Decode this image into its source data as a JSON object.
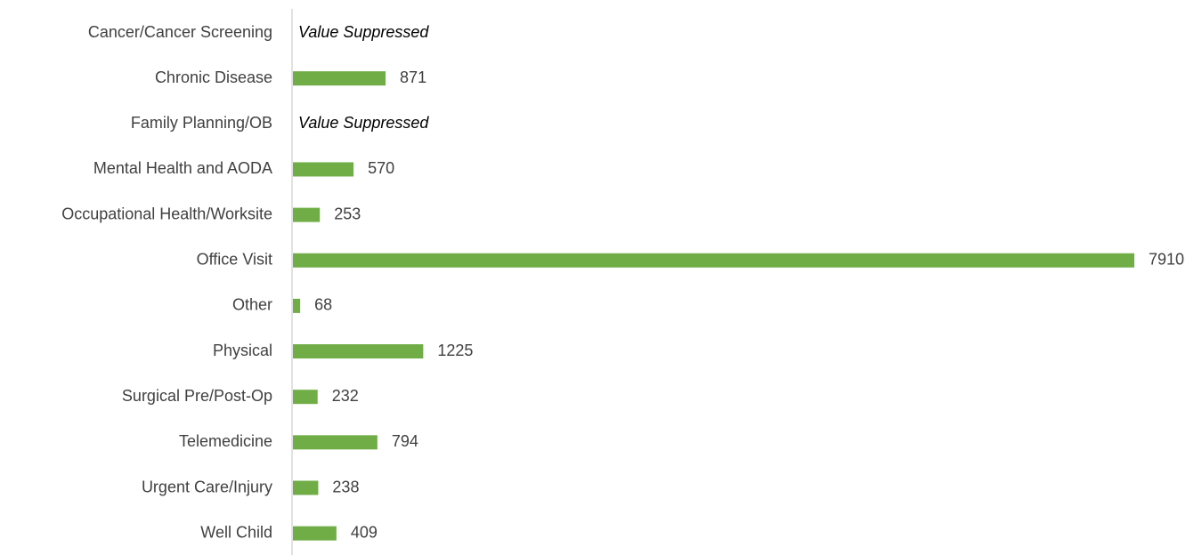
{
  "chart_data": {
    "type": "bar",
    "orientation": "horizontal",
    "categories": [
      "Cancer/Cancer Screening",
      "Chronic Disease",
      "Family Planning/OB",
      "Mental Health and AODA",
      "Occupational Health/Worksite",
      "Office Visit",
      "Other",
      "Physical",
      "Surgical Pre/Post-Op",
      "Telemedicine",
      "Urgent Care/Injury",
      "Well Child"
    ],
    "values": [
      null,
      871,
      null,
      570,
      253,
      7910,
      68,
      1225,
      232,
      794,
      238,
      409
    ],
    "value_labels": [
      "Value Suppressed",
      null,
      "Value Suppressed",
      null,
      null,
      null,
      null,
      null,
      null,
      null,
      null,
      null
    ],
    "color": "#70ad47"
  }
}
